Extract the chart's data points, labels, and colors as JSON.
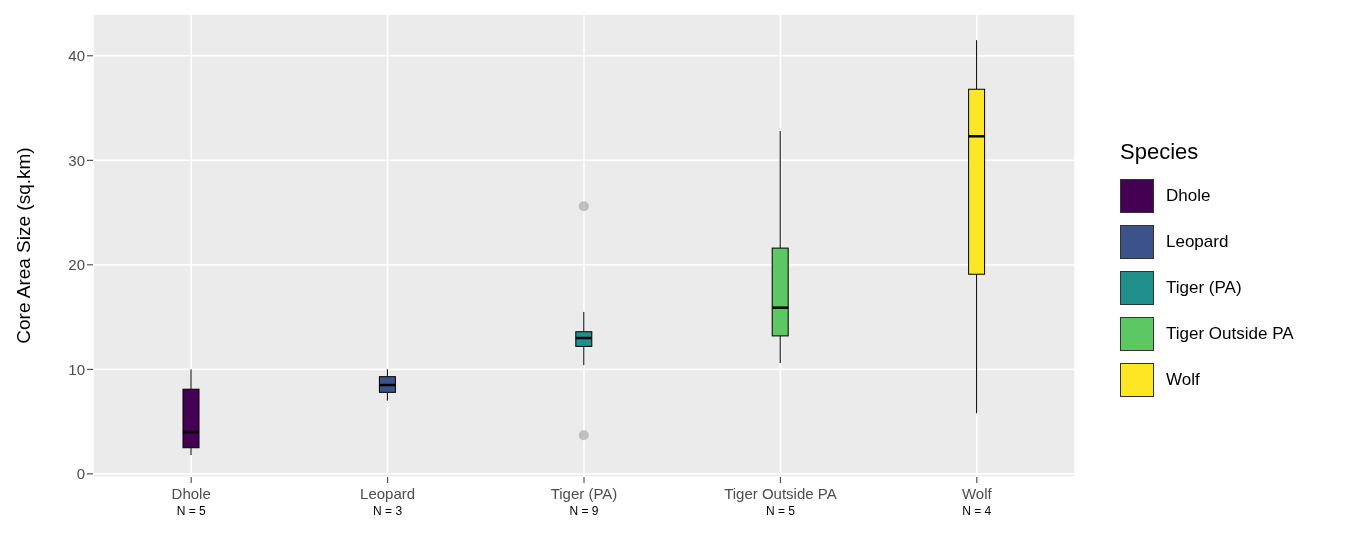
{
  "chart_data": {
    "type": "box",
    "ylabel": "Core Area Size (sq.km)",
    "legend_title": "Species",
    "categories": [
      "Dhole",
      "Leopard",
      "Tiger (PA)",
      "Tiger Outside PA",
      "Wolf"
    ],
    "series": [
      {
        "name": "Dhole",
        "color": "#440154",
        "boxes": [
          {
            "low": 1.8,
            "q1": 2.5,
            "median": 4,
            "q3": 8.1,
            "high": 10
          },
          null,
          null,
          null,
          null
        ]
      },
      {
        "name": "Leopard",
        "color": "#3b528b",
        "boxes": [
          null,
          {
            "low": 7,
            "q1": 7.8,
            "median": 8.5,
            "q3": 9.3,
            "high": 10
          },
          null,
          null,
          null
        ]
      },
      {
        "name": "Tiger (PA)",
        "color": "#21908c",
        "boxes": [
          null,
          null,
          {
            "low": 10.4,
            "q1": 12.2,
            "median": 13,
            "q3": 13.6,
            "high": 15.5,
            "outliers": [
              3.7,
              25.6
            ]
          },
          null,
          null
        ]
      },
      {
        "name": "Tiger Outside PA",
        "color": "#5dc863",
        "boxes": [
          null,
          null,
          null,
          {
            "low": 10.6,
            "q1": 13.2,
            "median": 15.9,
            "q3": 21.6,
            "high": 32.8
          },
          null
        ]
      },
      {
        "name": "Wolf",
        "color": "#fde725",
        "boxes": [
          null,
          null,
          null,
          null,
          {
            "low": 5.8,
            "q1": 19.1,
            "median": 32.3,
            "q3": 36.8,
            "high": 41.5
          }
        ]
      }
    ],
    "annotations": [
      "N = 5",
      "N = 3",
      "N = 9",
      "N = 5",
      "N = 4"
    ],
    "ylim": [
      -0.3,
      44
    ],
    "yticks": [
      0,
      10,
      20,
      30,
      40
    ],
    "grid": true,
    "legend": "right"
  }
}
